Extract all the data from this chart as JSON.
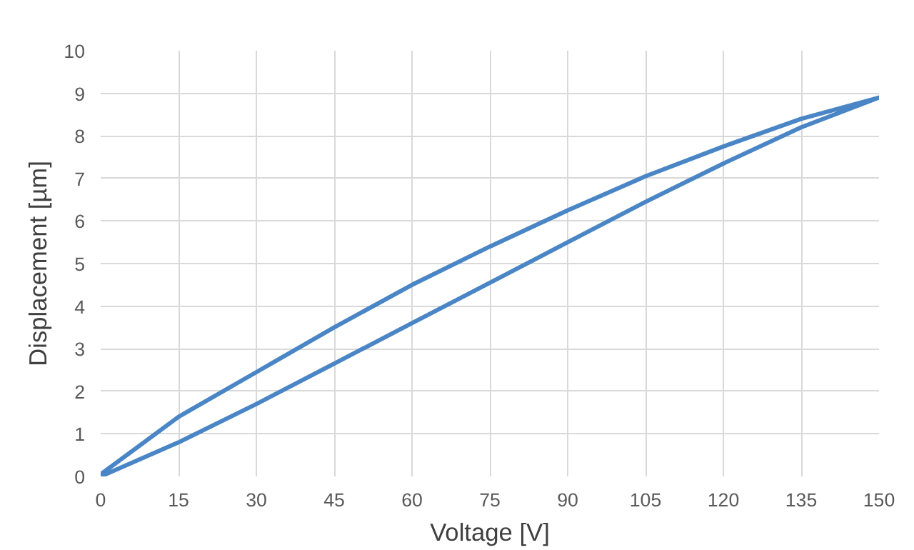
{
  "chart_data": {
    "type": "line",
    "xlabel": "Voltage [V]",
    "ylabel": "Displacement [µm]",
    "series": [
      {
        "color": "#4a86c5",
        "x": [
          0,
          15,
          30,
          45,
          60,
          75,
          90,
          105,
          120,
          135,
          150,
          135,
          120,
          105,
          90,
          75,
          60,
          45,
          30,
          15,
          0
        ],
        "values": [
          0,
          0.8,
          1.7,
          2.65,
          3.6,
          4.55,
          5.5,
          6.45,
          7.35,
          8.2,
          8.9,
          8.4,
          7.75,
          7.05,
          6.25,
          5.4,
          4.5,
          3.5,
          2.45,
          1.4,
          0.05
        ]
      }
    ],
    "xlim": [
      0,
      150
    ],
    "xticks": [
      0,
      15,
      30,
      45,
      60,
      75,
      90,
      105,
      120,
      135,
      150
    ],
    "ylim": [
      0,
      10
    ],
    "yticks": [
      0,
      1,
      2,
      3,
      4,
      5,
      6,
      7,
      8,
      9,
      10
    ],
    "grid": true,
    "marker": "none",
    "line_style": "solid"
  }
}
